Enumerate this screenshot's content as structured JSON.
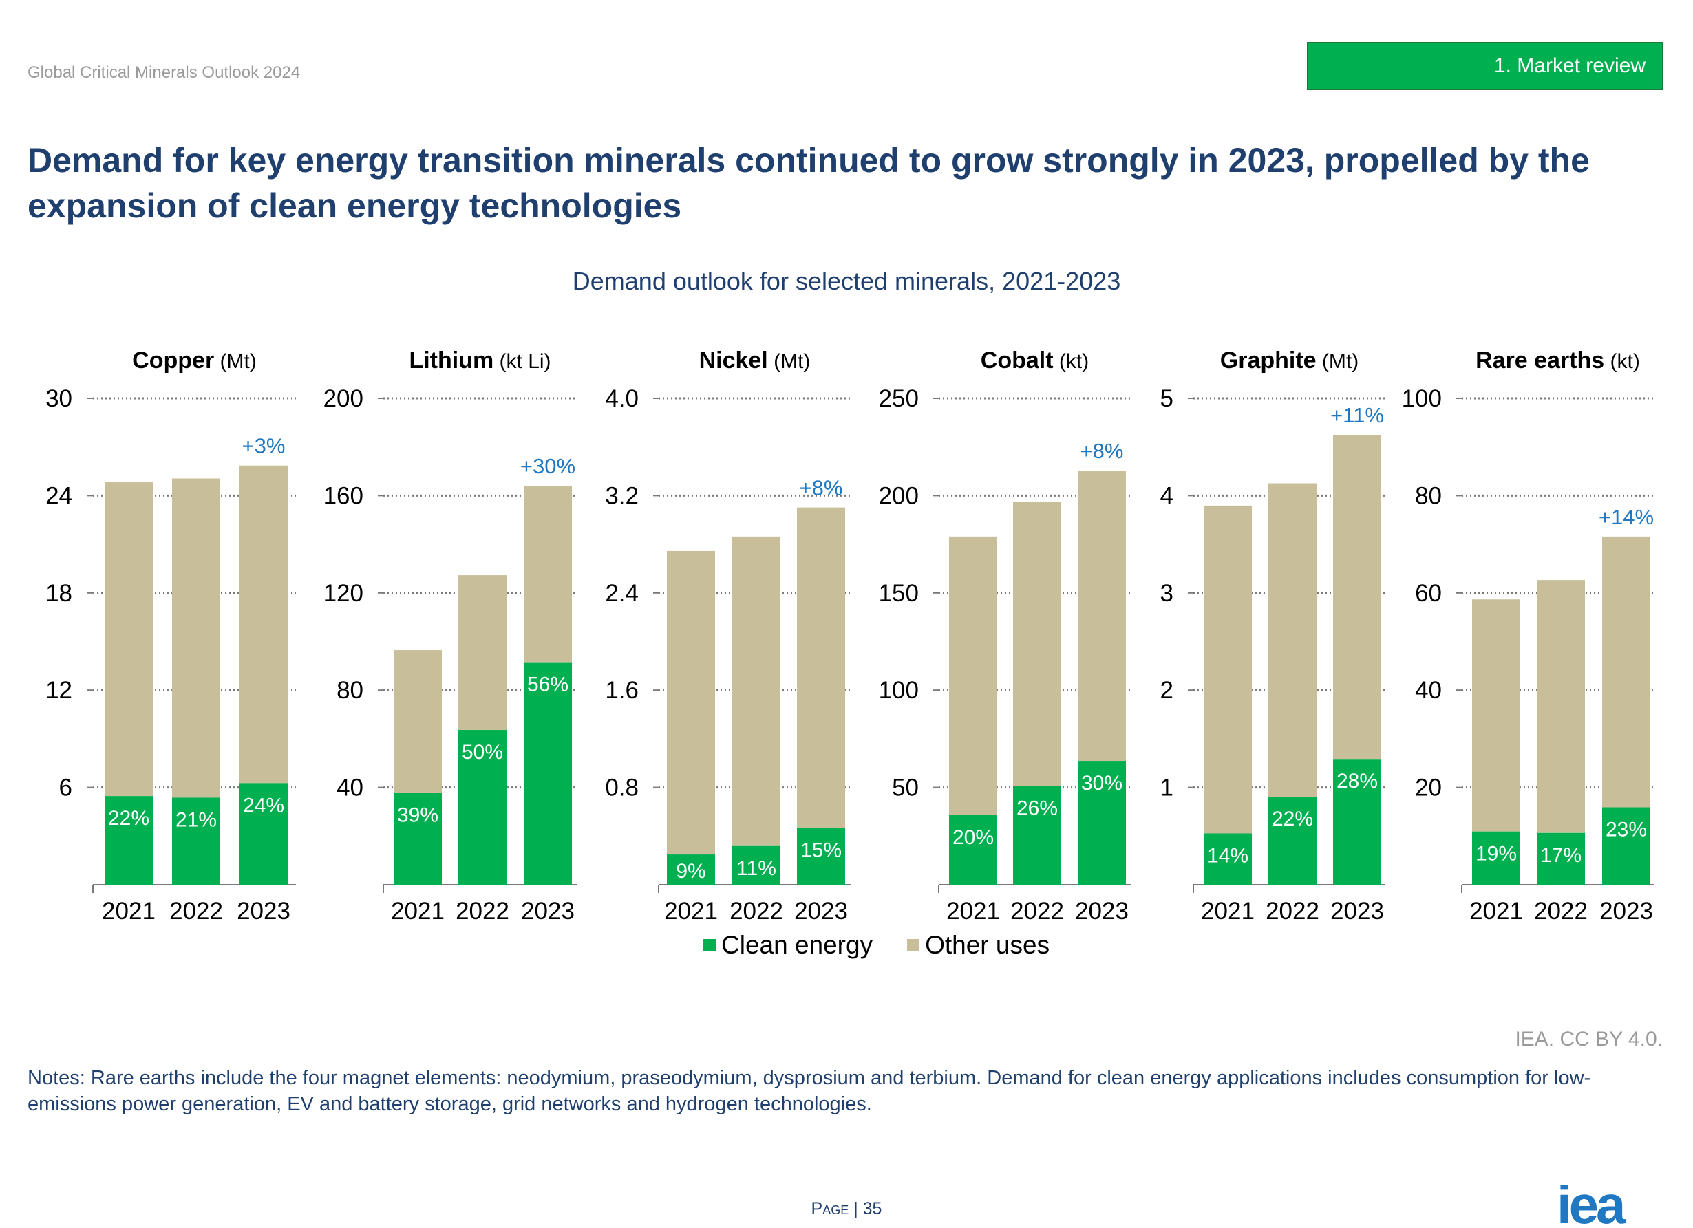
{
  "header": {
    "report": "Global Critical Minerals Outlook 2024",
    "section": "1.   Market review"
  },
  "headline": "Demand for key energy transition minerals continued to grow strongly in 2023, propelled by the expansion of clean energy technologies",
  "chart_title": "Demand outlook for selected minerals, 2021-2023",
  "colors": {
    "clean": "#00b050",
    "other": "#c8bf9a",
    "growth": "#1f78c1",
    "axis_text": "#000000"
  },
  "chart_data": [
    {
      "type": "bar",
      "mineral": "Copper",
      "unit": "(Mt)",
      "categories": [
        "2021",
        "2022",
        "2023"
      ],
      "ylim": [
        0,
        30
      ],
      "yticks": [
        "6",
        "12",
        "18",
        "24",
        "30"
      ],
      "series": [
        {
          "name": "Clean energy",
          "values": [
            5.5,
            5.4,
            6.3
          ]
        },
        {
          "name": "Other uses",
          "values": [
            19.5,
            19.8,
            19.7
          ]
        }
      ],
      "share_labels": [
        "22%",
        "21%",
        "24%"
      ],
      "growth_label": "+3%",
      "stacked": true,
      "grid": "dotted"
    },
    {
      "type": "bar",
      "mineral": "Lithium",
      "unit": "(kt Li)",
      "categories": [
        "2021",
        "2022",
        "2023"
      ],
      "ylim": [
        0,
        200
      ],
      "yticks": [
        "40",
        "80",
        "120",
        "160",
        "200"
      ],
      "series": [
        {
          "name": "Clean energy",
          "values": [
            38,
            64,
            92
          ]
        },
        {
          "name": "Other uses",
          "values": [
            59,
            64,
            73
          ]
        }
      ],
      "share_labels": [
        "39%",
        "50%",
        "56%"
      ],
      "growth_label": "+30%",
      "stacked": true,
      "grid": "dotted"
    },
    {
      "type": "bar",
      "mineral": "Nickel",
      "unit": "(Mt)",
      "categories": [
        "2021",
        "2022",
        "2023"
      ],
      "ylim": [
        0,
        4.0
      ],
      "yticks": [
        "0.8",
        "1.6",
        "2.4",
        "3.2",
        "4.0"
      ],
      "series": [
        {
          "name": "Clean energy",
          "values": [
            0.25,
            0.32,
            0.47
          ]
        },
        {
          "name": "Other uses",
          "values": [
            2.51,
            2.56,
            2.65
          ]
        }
      ],
      "share_labels": [
        "9%",
        "11%",
        "15%"
      ],
      "growth_label": "+8%",
      "stacked": true,
      "grid": "dotted"
    },
    {
      "type": "bar",
      "mineral": "Cobalt",
      "unit": "(kt)",
      "categories": [
        "2021",
        "2022",
        "2023"
      ],
      "ylim": [
        0,
        250
      ],
      "yticks": [
        "50",
        "100",
        "150",
        "200",
        "250"
      ],
      "series": [
        {
          "name": "Clean energy",
          "values": [
            36,
            51,
            64
          ]
        },
        {
          "name": "Other uses",
          "values": [
            144,
            147,
            150
          ]
        }
      ],
      "share_labels": [
        "20%",
        "26%",
        "30%"
      ],
      "growth_label": "+8%",
      "stacked": true,
      "grid": "dotted"
    },
    {
      "type": "bar",
      "mineral": "Graphite",
      "unit": "(Mt)",
      "categories": [
        "2021",
        "2022",
        "2023"
      ],
      "ylim": [
        0,
        5
      ],
      "yticks": [
        "1",
        "2",
        "3",
        "4",
        "5"
      ],
      "series": [
        {
          "name": "Clean energy",
          "values": [
            0.53,
            0.91,
            1.3
          ]
        },
        {
          "name": "Other uses",
          "values": [
            3.39,
            3.24,
            3.35
          ]
        }
      ],
      "share_labels": [
        "14%",
        "22%",
        "28%"
      ],
      "growth_label": "+11%",
      "stacked": true,
      "grid": "dotted"
    },
    {
      "type": "bar",
      "mineral": "Rare earths",
      "unit": "(kt)",
      "categories": [
        "2021",
        "2022",
        "2023"
      ],
      "ylim": [
        0,
        100
      ],
      "yticks": [
        "20",
        "40",
        "60",
        "80",
        "100"
      ],
      "series": [
        {
          "name": "Clean energy",
          "values": [
            11,
            10.7,
            16
          ]
        },
        {
          "name": "Other uses",
          "values": [
            48,
            52.3,
            56
          ]
        }
      ],
      "share_labels": [
        "19%",
        "17%",
        "23%"
      ],
      "growth_label": "+14%",
      "stacked": true,
      "grid": "dotted"
    }
  ],
  "legend": {
    "clean": "Clean energy",
    "other": "Other uses"
  },
  "source": "IEA. CC BY 4.0.",
  "notes": "Notes: Rare earths include the four magnet elements: neodymium, praseodymium, dysprosium and terbium. Demand for clean energy applications includes consumption for low-emissions power generation, EV and battery storage, grid networks and hydrogen technologies.",
  "page": {
    "word": "Page",
    "sep": "|",
    "number": "35"
  },
  "logo_text": "iea"
}
